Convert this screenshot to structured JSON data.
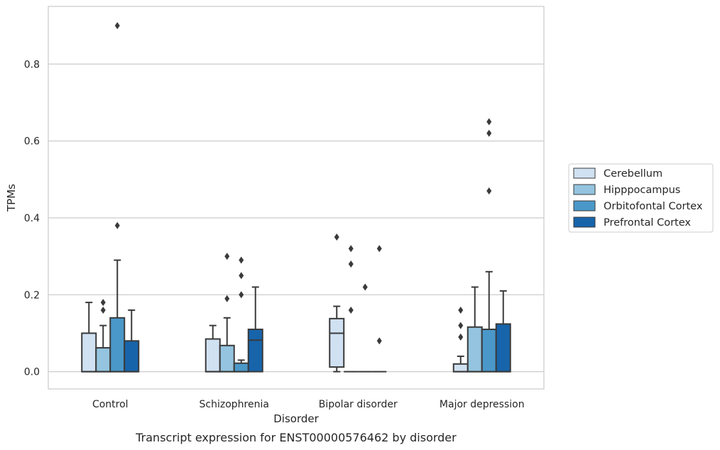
{
  "caption": "Transcript expression for ENST00000576462 by disorder",
  "chart_data": {
    "type": "box",
    "xlabel": "Disorder",
    "ylabel": "TPMs",
    "ylim": [
      -0.045,
      0.95
    ],
    "yticks": [
      0.0,
      0.2,
      0.4,
      0.6,
      0.8
    ],
    "ytick_labels": [
      "0.0",
      "0.2",
      "0.4",
      "0.6",
      "0.8"
    ],
    "grid": "horizontal",
    "legend_position": "right",
    "categories": [
      "Control",
      "Schizophrenia",
      "Bipolar disorder",
      "Major depression"
    ],
    "series": [
      {
        "name": "Cerebellum",
        "color": "#d0e1f2",
        "boxes": [
          {
            "q1": 0.0,
            "median": 0.0,
            "q3": 0.1,
            "whisker_low": 0.0,
            "whisker_high": 0.18,
            "outliers": []
          },
          {
            "q1": 0.0,
            "median": 0.0,
            "q3": 0.085,
            "whisker_low": 0.0,
            "whisker_high": 0.12,
            "outliers": []
          },
          {
            "q1": 0.012,
            "median": 0.1,
            "q3": 0.138,
            "whisker_low": 0.0,
            "whisker_high": 0.17,
            "outliers": [
              0.35
            ]
          },
          {
            "q1": 0.0,
            "median": 0.0,
            "q3": 0.02,
            "whisker_low": 0.0,
            "whisker_high": 0.04,
            "outliers": [
              0.16,
              0.12,
              0.09
            ]
          }
        ]
      },
      {
        "name": "Hipppocampus",
        "color": "#94c4df",
        "boxes": [
          {
            "q1": 0.0,
            "median": 0.0,
            "q3": 0.062,
            "whisker_low": 0.0,
            "whisker_high": 0.12,
            "outliers": [
              0.18,
              0.16
            ]
          },
          {
            "q1": 0.0,
            "median": 0.0,
            "q3": 0.068,
            "whisker_low": 0.0,
            "whisker_high": 0.14,
            "outliers": [
              0.3,
              0.19
            ]
          },
          {
            "q1": 0.0,
            "median": 0.0,
            "q3": 0.0,
            "whisker_low": 0.0,
            "whisker_high": 0.0,
            "outliers": [
              0.32,
              0.28,
              0.16
            ]
          },
          {
            "q1": 0.0,
            "median": 0.0,
            "q3": 0.116,
            "whisker_low": 0.0,
            "whisker_high": 0.22,
            "outliers": []
          }
        ]
      },
      {
        "name": "Orbitofontal Cortex",
        "color": "#4a98c9",
        "boxes": [
          {
            "q1": 0.0,
            "median": 0.0,
            "q3": 0.14,
            "whisker_low": 0.0,
            "whisker_high": 0.29,
            "outliers": [
              0.9,
              0.38
            ]
          },
          {
            "q1": 0.0,
            "median": 0.0,
            "q3": 0.022,
            "whisker_low": 0.0,
            "whisker_high": 0.03,
            "outliers": [
              0.29,
              0.25,
              0.2
            ]
          },
          {
            "q1": 0.0,
            "median": 0.0,
            "q3": 0.0,
            "whisker_low": 0.0,
            "whisker_high": 0.0,
            "outliers": [
              0.22
            ]
          },
          {
            "q1": 0.0,
            "median": 0.0,
            "q3": 0.11,
            "whisker_low": 0.0,
            "whisker_high": 0.26,
            "outliers": [
              0.65,
              0.62,
              0.47
            ]
          }
        ]
      },
      {
        "name": "Prefrontal Cortex",
        "color": "#1764ab",
        "boxes": [
          {
            "q1": 0.0,
            "median": 0.0,
            "q3": 0.08,
            "whisker_low": 0.0,
            "whisker_high": 0.16,
            "outliers": []
          },
          {
            "q1": 0.0,
            "median": 0.082,
            "q3": 0.11,
            "whisker_low": 0.0,
            "whisker_high": 0.22,
            "outliers": []
          },
          {
            "q1": 0.0,
            "median": 0.0,
            "q3": 0.0,
            "whisker_low": 0.0,
            "whisker_high": 0.0,
            "outliers": [
              0.32,
              0.08
            ]
          },
          {
            "q1": 0.0,
            "median": 0.0,
            "q3": 0.124,
            "whisker_low": 0.0,
            "whisker_high": 0.21,
            "outliers": []
          }
        ]
      }
    ]
  }
}
